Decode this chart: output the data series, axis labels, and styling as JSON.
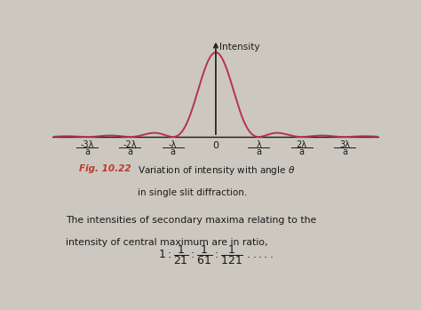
{
  "background_color": "#ccc8bf",
  "curve_color": "#b5344a",
  "axis_color": "#1a1a1a",
  "fig_label_color": "#c0392b",
  "fig_label": "Fig. 10.22",
  "intensity_label": "Intensity",
  "x_tick_labels": [
    "-3λ",
    "-2λ",
    "-λ",
    "0",
    "λ",
    "2λ",
    "3λ"
  ],
  "x_tick_positions": [
    -3,
    -2,
    -1,
    0,
    1,
    2,
    3
  ],
  "x_denom": "a",
  "ylim": [
    -0.28,
    1.18
  ],
  "xlim": [
    -3.8,
    3.8
  ],
  "text_body_line1": "The intensities of secondary maxima relating to the",
  "text_body_line2": "intensity of central maximum are in ratio,"
}
